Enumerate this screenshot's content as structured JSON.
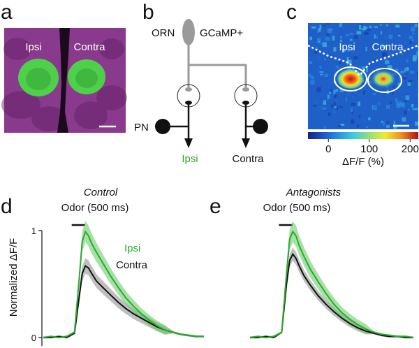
{
  "panels": {
    "a": {
      "letter": "a",
      "ipsi_label": "Ipsi",
      "contra_label": "Contra",
      "colors": {
        "background": "#8a3a8c",
        "glomerulus": "#4fd04a"
      }
    },
    "b": {
      "letter": "b",
      "orn_label": "ORN",
      "gcamp_label": "GCaMP+",
      "pn_label": "PN",
      "ipsi_label": "Ipsi",
      "contra_label": "Contra",
      "colors": {
        "orn": "#9a9a9a",
        "ipsi_text": "#2aa12a"
      }
    },
    "c": {
      "letter": "c",
      "ipsi_label": "Ipsi",
      "contra_label": "Contra",
      "colorbar": {
        "ticks": [
          "0",
          "100",
          "200"
        ],
        "tick_values": [
          0,
          100,
          200
        ],
        "range": [
          -50,
          220
        ],
        "label": "ΔF/F (%)"
      }
    },
    "d": {
      "letter": "d",
      "condition": "Control",
      "stimulus_label": "Odor (500 ms)",
      "ylabel": "Normalized ΔF/F",
      "yticks": [
        "1",
        "0"
      ],
      "legend": {
        "ipsi": "Ipsi",
        "contra": "Contra"
      }
    },
    "e": {
      "letter": "e",
      "condition": "Antagonists",
      "stimulus_label": "Odor (500 ms)"
    }
  },
  "chart_data": [
    {
      "type": "line",
      "panel": "d",
      "title": "Control",
      "ylabel": "Normalized ΔF/F",
      "ylim": [
        0,
        1
      ],
      "stimulus": {
        "label": "Odor (500 ms)",
        "start": 0,
        "end": 0.5
      },
      "x": [
        -2.0,
        -1.5,
        -1.0,
        -0.5,
        0.0,
        0.3,
        0.5,
        0.7,
        0.9,
        1.1,
        1.4,
        1.8,
        2.3,
        2.8,
        3.3,
        3.8,
        4.3,
        4.8,
        5.3,
        5.8,
        6.3,
        6.8,
        7.3,
        7.8,
        8.3
      ],
      "series": [
        {
          "name": "Ipsi",
          "color": "#2ea82e",
          "values": [
            0.0,
            0.01,
            0.0,
            0.01,
            0.05,
            0.55,
            0.9,
            0.99,
            0.95,
            0.88,
            0.8,
            0.7,
            0.58,
            0.47,
            0.37,
            0.29,
            0.22,
            0.16,
            0.11,
            0.07,
            0.05,
            0.03,
            0.02,
            0.01,
            0.01
          ],
          "sem_band": 0.1
        },
        {
          "name": "Contra",
          "color": "#111111",
          "values": [
            0.0,
            0.0,
            0.01,
            0.0,
            0.04,
            0.38,
            0.6,
            0.67,
            0.65,
            0.6,
            0.53,
            0.47,
            0.4,
            0.33,
            0.27,
            0.22,
            0.18,
            0.14,
            0.1,
            0.07,
            0.05,
            0.03,
            0.02,
            0.01,
            0.01
          ],
          "sem_band": 0.09
        }
      ]
    },
    {
      "type": "line",
      "panel": "e",
      "title": "Antagonists",
      "ylim": [
        0,
        1
      ],
      "stimulus": {
        "label": "Odor (500 ms)",
        "start": 0,
        "end": 0.5
      },
      "x": [
        -2.0,
        -1.5,
        -1.0,
        -0.5,
        0.0,
        0.3,
        0.5,
        0.7,
        0.9,
        1.1,
        1.4,
        1.8,
        2.3,
        2.8,
        3.3,
        3.8,
        4.3,
        4.8,
        5.3,
        5.8,
        6.3,
        6.8,
        7.3,
        7.8,
        8.3
      ],
      "series": [
        {
          "name": "Ipsi",
          "color": "#2ea82e",
          "values": [
            0.0,
            0.01,
            0.0,
            0.01,
            0.05,
            0.6,
            0.92,
            0.99,
            0.95,
            0.86,
            0.76,
            0.64,
            0.52,
            0.41,
            0.31,
            0.23,
            0.17,
            0.12,
            0.08,
            0.05,
            0.03,
            0.02,
            0.01,
            0.01,
            0.0
          ],
          "sem_band": 0.1
        },
        {
          "name": "Contra",
          "color": "#111111",
          "values": [
            0.0,
            0.0,
            0.01,
            0.0,
            0.05,
            0.5,
            0.72,
            0.78,
            0.74,
            0.67,
            0.58,
            0.49,
            0.39,
            0.31,
            0.24,
            0.18,
            0.13,
            0.09,
            0.06,
            0.04,
            0.02,
            0.01,
            0.01,
            0.0,
            0.0
          ],
          "sem_band": 0.07
        }
      ]
    }
  ]
}
